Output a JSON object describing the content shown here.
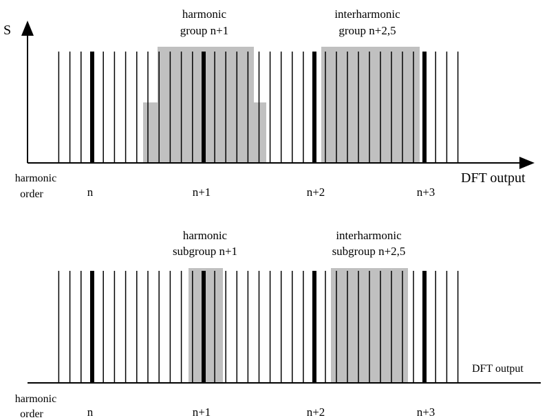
{
  "top_panel": {
    "axis_y_label": "S",
    "axis_x_label": "DFT output",
    "row_label_line1": "harmonic",
    "row_label_line2": "order",
    "order_labels": [
      "n",
      "n+1",
      "n+2",
      "n+3"
    ],
    "group_a_line1": "harmonic",
    "group_a_line2": "group n+1",
    "group_b_line1": "interharmonic",
    "group_b_line2": "group n+2,5"
  },
  "bottom_panel": {
    "axis_x_label": "DFT output",
    "row_label_line1": "harmonic",
    "row_label_line2": "order",
    "order_labels": [
      "n",
      "n+1",
      "n+2",
      "n+3"
    ],
    "group_a_line1": "harmonic",
    "group_a_line2": "subgroup n+1",
    "group_b_line1": "interharmonic",
    "group_b_line2": "subgroup n+2,5"
  },
  "colors": {
    "shade": "#c0c0c0",
    "ink": "#000000"
  }
}
